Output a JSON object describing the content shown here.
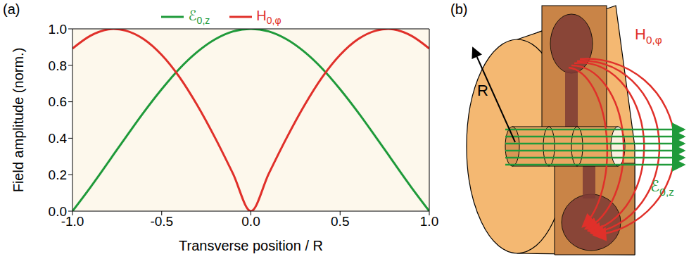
{
  "panel_labels": [
    "(a)",
    "(b)"
  ],
  "chart_data": {
    "type": "line",
    "x": [
      -1,
      -0.9,
      -0.8,
      -0.77,
      -0.7,
      -0.6,
      -0.5,
      -0.4,
      -0.3,
      -0.2,
      -0.1,
      0,
      0.1,
      0.2,
      0.3,
      0.4,
      0.5,
      0.6,
      0.7,
      0.77,
      0.8,
      0.9,
      1
    ],
    "series": [
      {
        "name": "ℰ0,z",
        "color": "#1f9a3a",
        "values": [
          0,
          0.13,
          0.268,
          0.31,
          0.407,
          0.543,
          0.669,
          0.782,
          0.874,
          0.943,
          0.986,
          1,
          0.986,
          0.943,
          0.874,
          0.782,
          0.669,
          0.543,
          0.407,
          0.31,
          0.268,
          0.13,
          0
        ]
      },
      {
        "name": "H0,φ",
        "color": "#e0302a",
        "values": [
          0.892,
          0.962,
          0.997,
          1.0,
          0.99,
          0.943,
          0.857,
          0.735,
          0.58,
          0.401,
          0.205,
          0,
          0.205,
          0.401,
          0.58,
          0.735,
          0.857,
          0.943,
          0.99,
          1.0,
          0.997,
          0.962,
          0.892
        ]
      }
    ],
    "x_label": "Transverse position / R",
    "y_label": "Field amplitude (norm.)",
    "xlim": [
      -1,
      1
    ],
    "xticks": [
      {
        "value": -1,
        "label": "-1.0"
      },
      {
        "value": -0.5,
        "label": "-0.5"
      },
      {
        "value": 0,
        "label": "0.0"
      },
      {
        "value": 0.5,
        "label": "0.5"
      },
      {
        "value": 1,
        "label": "1.0"
      }
    ],
    "ylim": [
      0,
      1
    ],
    "yticks": [
      {
        "value": 0,
        "label": "0.0"
      },
      {
        "value": 0.2,
        "label": "0.2"
      },
      {
        "value": 0.4,
        "label": "0.4"
      },
      {
        "value": 0.6,
        "label": "0.6"
      },
      {
        "value": 0.8,
        "label": "0.8"
      },
      {
        "value": 1,
        "label": "1.0"
      }
    ],
    "grid": false,
    "legend": "top"
  },
  "diagram": {
    "labels": {
      "radius": "R",
      "magnetic_field": "H0,φ",
      "electric_field": "ℰ0,z"
    }
  }
}
